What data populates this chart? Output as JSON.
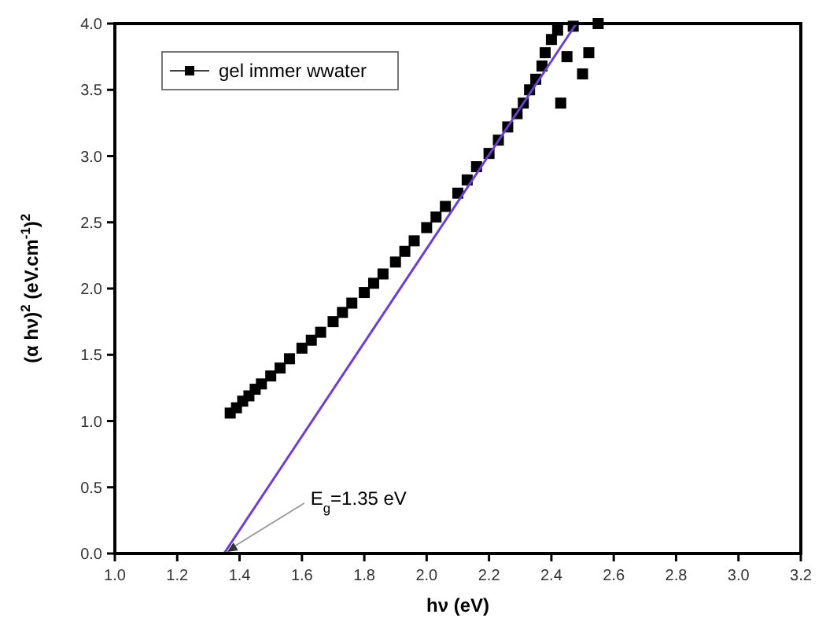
{
  "chart_data": {
    "type": "scatter",
    "xlabel": "hν (eV)",
    "ylabel": "(α hν)$^{2}$ (eV.cm$^{-1}$)$^{2}$",
    "xlim": [
      1.0,
      3.2
    ],
    "ylim": [
      0,
      4.0
    ],
    "xticks": [
      {
        "value": 1.0,
        "label": "1.0"
      },
      1.2,
      1.4,
      1.6,
      1.8,
      {
        "value": 2.0,
        "label": "2.0"
      },
      2.2,
      2.4,
      2.6,
      2.8,
      {
        "value": 3.0,
        "label": "3.0"
      },
      3.2
    ],
    "yticks": [
      {
        "value": 0,
        "label": "0.0"
      },
      0.5,
      {
        "value": 1,
        "label": "1.0"
      },
      1.5,
      {
        "value": 2,
        "label": "2.0"
      },
      2.5,
      {
        "value": 3,
        "label": "3.0"
      },
      3.5,
      {
        "value": 4,
        "label": "4.0"
      }
    ],
    "grid": false,
    "legend": "top left",
    "series": [
      {
        "name": "gel immer wwater",
        "marker": "square",
        "color": "#000000",
        "x": [
          1.37,
          1.39,
          1.41,
          1.43,
          1.45,
          1.47,
          1.5,
          1.53,
          1.56,
          1.6,
          1.63,
          1.66,
          1.7,
          1.73,
          1.76,
          1.8,
          1.83,
          1.86,
          1.9,
          1.93,
          1.96,
          2.0,
          2.03,
          2.06,
          2.1,
          2.13,
          2.16,
          2.2,
          2.23,
          2.26,
          2.29,
          2.31,
          2.33,
          2.35,
          2.37,
          2.38,
          2.4,
          2.42,
          2.43,
          2.45,
          2.47,
          2.5,
          2.52,
          2.55
        ],
        "values": [
          1.06,
          1.1,
          1.15,
          1.19,
          1.24,
          1.28,
          1.34,
          1.4,
          1.47,
          1.55,
          1.61,
          1.67,
          1.75,
          1.82,
          1.89,
          1.97,
          2.04,
          2.11,
          2.2,
          2.28,
          2.36,
          2.46,
          2.54,
          2.62,
          2.72,
          2.82,
          2.92,
          3.02,
          3.12,
          3.22,
          3.32,
          3.4,
          3.5,
          3.58,
          3.68,
          3.78,
          3.88,
          3.95,
          3.4,
          3.75,
          3.98,
          3.62,
          3.78,
          4.0
        ]
      },
      {
        "type": "line",
        "marker": "none",
        "color": "#6a3fd6",
        "x": [
          1.35,
          2.48
        ],
        "values": [
          0,
          4.0
        ]
      }
    ],
    "annotations": [
      {
        "text": "E$_{g}$=1.35 eV",
        "x": 1.35,
        "y": 0
      }
    ]
  }
}
